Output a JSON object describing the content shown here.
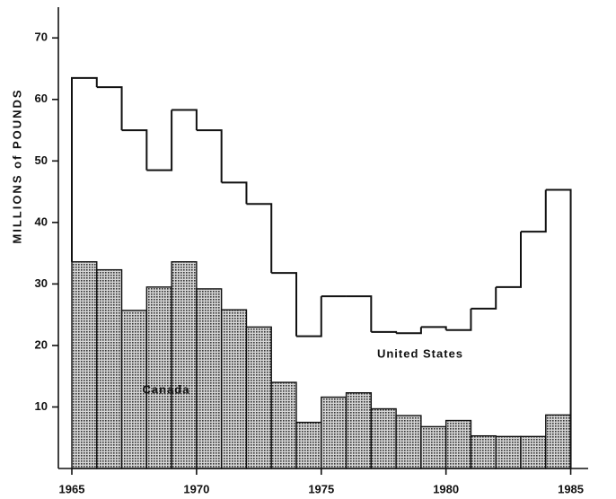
{
  "chart_data": {
    "type": "histogram",
    "ylabel": "MILLIONS of POUNDS",
    "bins": [
      1965,
      1966,
      1967,
      1968,
      1969,
      1970,
      1971,
      1972,
      1973,
      1974,
      1975,
      1976,
      1977,
      1978,
      1979,
      1980,
      1981,
      1982,
      1983,
      1984,
      1985
    ],
    "stacked": true,
    "series": [
      {
        "name": "Canada",
        "color": "#9a9a9a",
        "values": [
          33.6,
          32.3,
          25.7,
          29.5,
          33.6,
          29.2,
          25.8,
          23,
          14,
          7.5,
          11.6,
          12.3,
          9.7,
          8.6,
          6.8,
          7.8,
          5.3,
          5.2,
          5.2,
          8.7
        ]
      },
      {
        "name": "United States",
        "color": "#ffffff",
        "values": [
          29.9,
          29.7,
          29.3,
          19,
          24.7,
          25.8,
          20.7,
          20,
          17.8,
          14,
          16.4,
          15.7,
          12.5,
          13.4,
          16.2,
          14.7,
          20.7,
          24.3,
          33.3,
          36.6
        ]
      }
    ],
    "xlim": [
      1964.46,
      1985.7
    ],
    "xticks": [
      1965,
      1970,
      1975,
      1980,
      1985
    ],
    "ylim": [
      0,
      75
    ],
    "yticks": [
      10,
      20,
      30,
      40,
      50,
      60,
      70
    ]
  }
}
